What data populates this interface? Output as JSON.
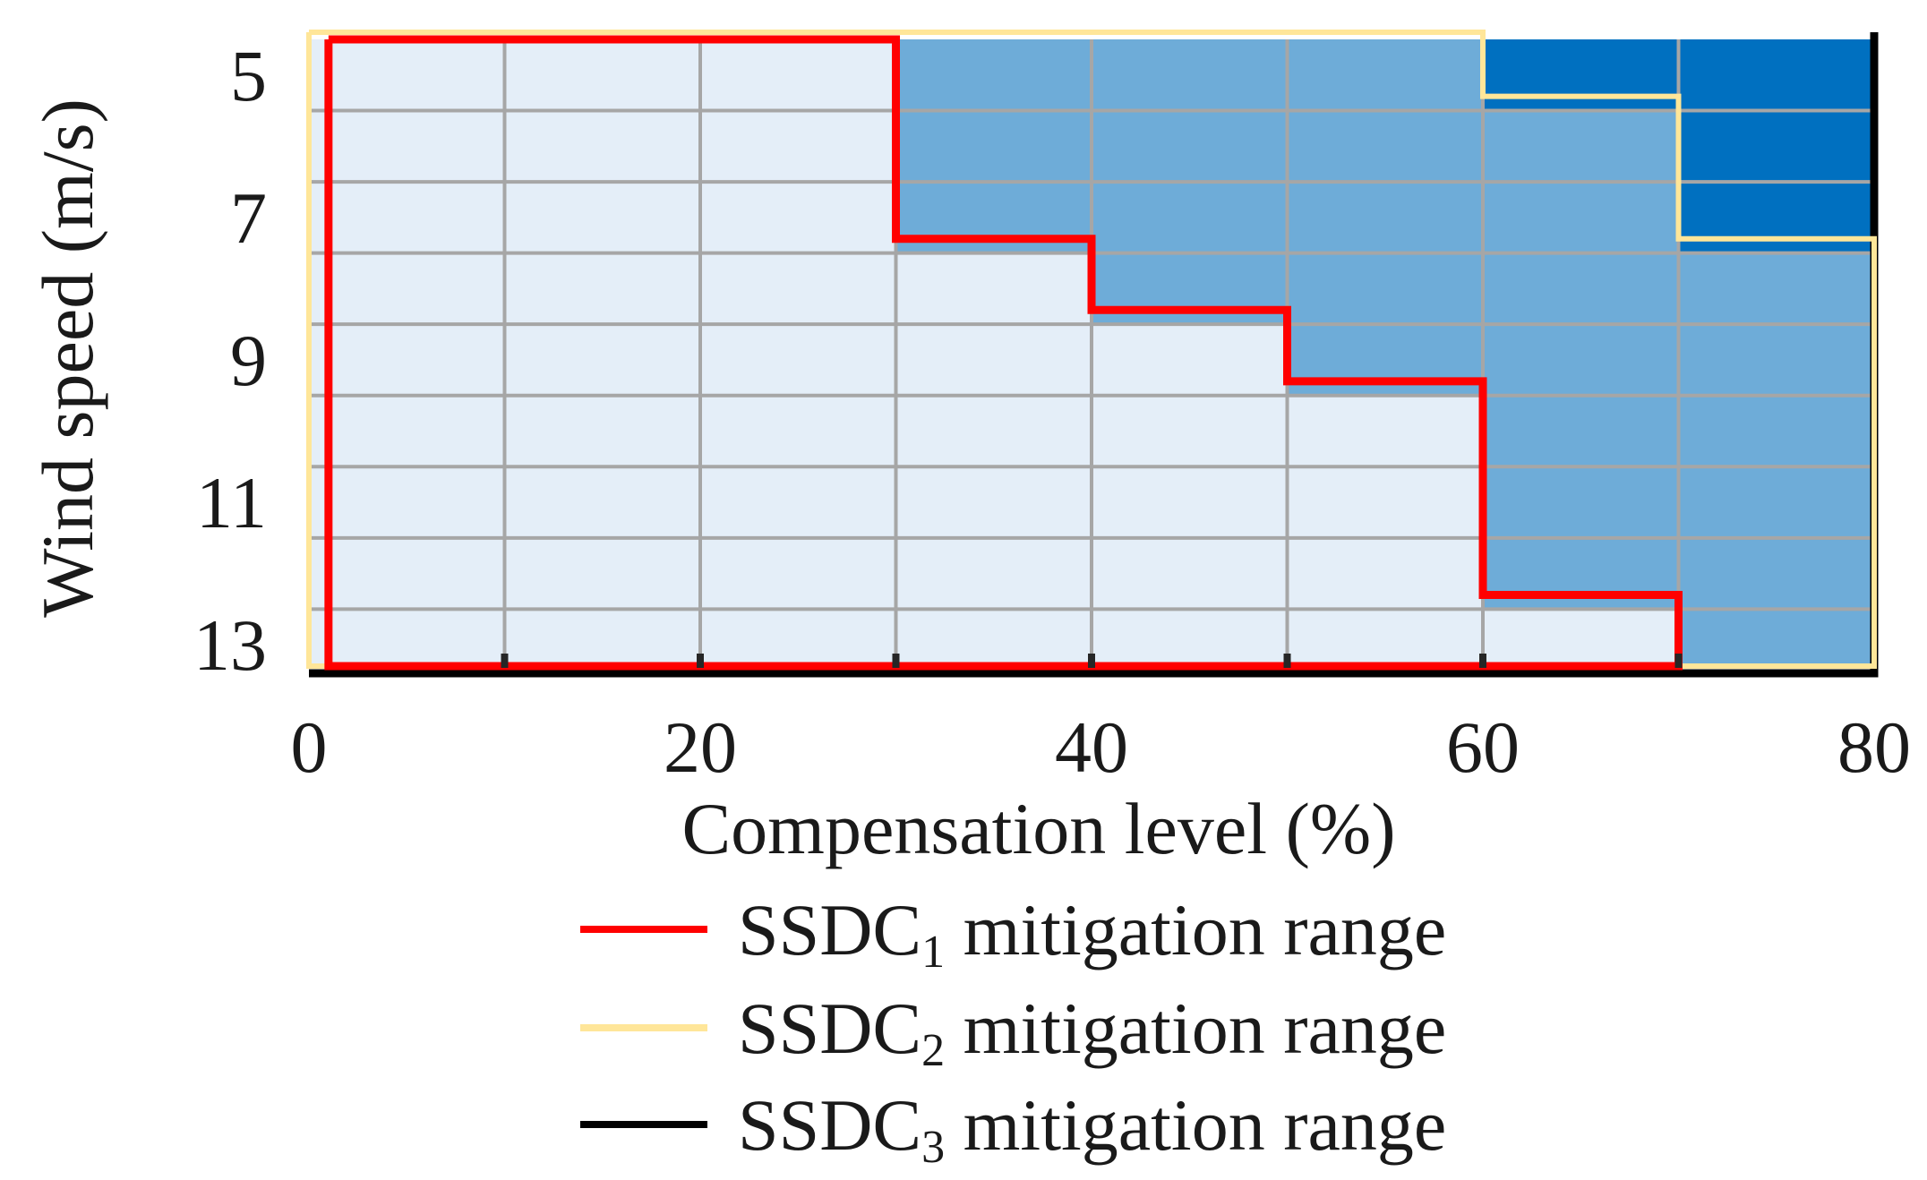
{
  "chart_data": {
    "type": "heatmap",
    "title": "",
    "xlabel": "Compensation level (%)",
    "ylabel": "Wind speed (m/s)",
    "xlim": [
      0,
      80
    ],
    "ylim": [
      4.5,
      13.3
    ],
    "x_ticks": [
      "0",
      "20",
      "40",
      "60",
      "80"
    ],
    "y_ticks": [
      "5",
      "7",
      "9",
      "11",
      "13"
    ],
    "grid": true,
    "cell_columns": [
      0,
      10,
      20,
      30,
      40,
      50,
      60,
      70
    ],
    "cell_rows": [
      {
        "wind_speed": 5,
        "stability_level": [
          0,
          0,
          0,
          1,
          1,
          1,
          2,
          2
        ]
      },
      {
        "wind_speed": 6,
        "stability_level": [
          0,
          0,
          0,
          1,
          1,
          1,
          1,
          2
        ]
      },
      {
        "wind_speed": 7,
        "stability_level": [
          0,
          0,
          0,
          1,
          1,
          1,
          1,
          2
        ]
      },
      {
        "wind_speed": 8,
        "stability_level": [
          0,
          0,
          0,
          0,
          1,
          1,
          1,
          1
        ]
      },
      {
        "wind_speed": 9,
        "stability_level": [
          0,
          0,
          0,
          0,
          0,
          1,
          1,
          1
        ]
      },
      {
        "wind_speed": 10,
        "stability_level": [
          0,
          0,
          0,
          0,
          0,
          0,
          1,
          1
        ]
      },
      {
        "wind_speed": 11,
        "stability_level": [
          0,
          0,
          0,
          0,
          0,
          0,
          1,
          1
        ]
      },
      {
        "wind_speed": 12,
        "stability_level": [
          0,
          0,
          0,
          0,
          0,
          0,
          1,
          1
        ]
      },
      {
        "wind_speed": 13,
        "stability_level": [
          0,
          0,
          0,
          0,
          0,
          0,
          0,
          1
        ]
      }
    ],
    "level_colors": [
      "#e4eef8",
      "#6eacd8",
      "#0070c0"
    ],
    "series": [
      {
        "name": "SSDC1 mitigation range",
        "base": "SSDC",
        "sub": "1",
        "rest": " mitigation range",
        "color": "#ff0000",
        "boundary": [
          [
            1,
            4.5
          ],
          [
            30,
            4.5
          ],
          [
            30,
            7.3
          ],
          [
            40,
            7.3
          ],
          [
            40,
            8.3
          ],
          [
            50,
            8.3
          ],
          [
            50,
            9.3
          ],
          [
            60,
            9.3
          ],
          [
            60,
            12.3
          ],
          [
            70,
            12.3
          ],
          [
            70,
            13.3
          ],
          [
            1,
            13.3
          ],
          [
            1,
            4.5
          ]
        ]
      },
      {
        "name": "SSDC2 mitigation range",
        "base": "SSDC",
        "sub": "2",
        "rest": " mitigation range",
        "color": "#ffe699",
        "boundary": [
          [
            0,
            4.4
          ],
          [
            60,
            4.4
          ],
          [
            60,
            5.3
          ],
          [
            70,
            5.3
          ],
          [
            70,
            7.3
          ],
          [
            80,
            7.3
          ],
          [
            80,
            13.3
          ],
          [
            0,
            13.3
          ],
          [
            0,
            4.4
          ]
        ]
      },
      {
        "name": "SSDC3 mitigation range",
        "base": "SSDC",
        "sub": "3",
        "rest": " mitigation range",
        "color": "#000000",
        "boundary": [
          [
            0,
            13.4
          ],
          [
            80,
            13.4
          ],
          [
            80,
            4.4
          ]
        ]
      }
    ]
  }
}
